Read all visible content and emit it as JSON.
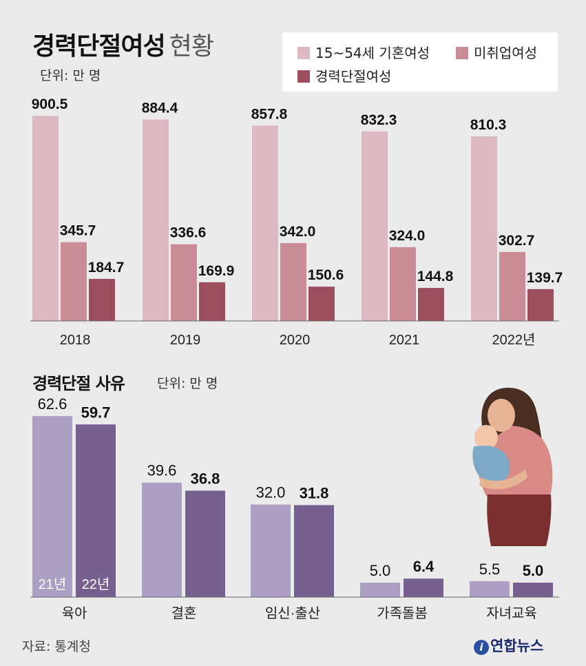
{
  "title_main": "경력단절여성",
  "title_sub": "현황",
  "unit_top": "단위: 만 명",
  "title2": "경력단절 사유",
  "unit2": "단위: 만 명",
  "source": "자료: 통계청",
  "logo_text": "연합뉴스",
  "colors": {
    "married": "#ddbac2",
    "unemployed": "#c98c97",
    "career_break": "#9c4e5e",
    "y2021": "#ab9fc3",
    "y2022": "#75608f"
  },
  "chart_data": [
    {
      "type": "bar",
      "categories": [
        "2018",
        "2019",
        "2020",
        "2021",
        "2022년"
      ],
      "series": [
        {
          "name": "15~54세 기혼여성",
          "values": [
            900.5,
            884.4,
            857.8,
            832.3,
            810.3
          ]
        },
        {
          "name": "미취업여성",
          "values": [
            345.7,
            336.6,
            342.0,
            324.0,
            302.7
          ]
        },
        {
          "name": "경력단절여성",
          "values": [
            184.7,
            169.9,
            150.6,
            144.8,
            139.7
          ]
        }
      ],
      "value_labels": [
        [
          "900.5",
          "884.4",
          "857.8",
          "832.3",
          "810.3"
        ],
        [
          "345.7",
          "336.6",
          "342.0",
          "324.0",
          "302.7"
        ],
        [
          "184.7",
          "169.9",
          "150.6",
          "144.8",
          "139.7"
        ]
      ],
      "ylim": [
        0,
        1000
      ],
      "legend": "top-right",
      "grid": false
    },
    {
      "type": "bar",
      "categories": [
        "육아",
        "결혼",
        "임신·출산",
        "가족돌봄",
        "자녀교육"
      ],
      "series": [
        {
          "name": "21년",
          "values": [
            62.6,
            39.6,
            32.0,
            5.0,
            5.5
          ]
        },
        {
          "name": "22년",
          "values": [
            59.7,
            36.8,
            31.8,
            6.4,
            5.0
          ]
        }
      ],
      "value_labels": [
        [
          "62.6",
          "39.6",
          "32.0",
          "5.0",
          "5.5"
        ],
        [
          "59.7",
          "36.8",
          "31.8",
          "6.4",
          "5.0"
        ]
      ],
      "ylim": [
        0,
        70
      ],
      "legend": "inside-first-bars",
      "grid": false
    }
  ]
}
